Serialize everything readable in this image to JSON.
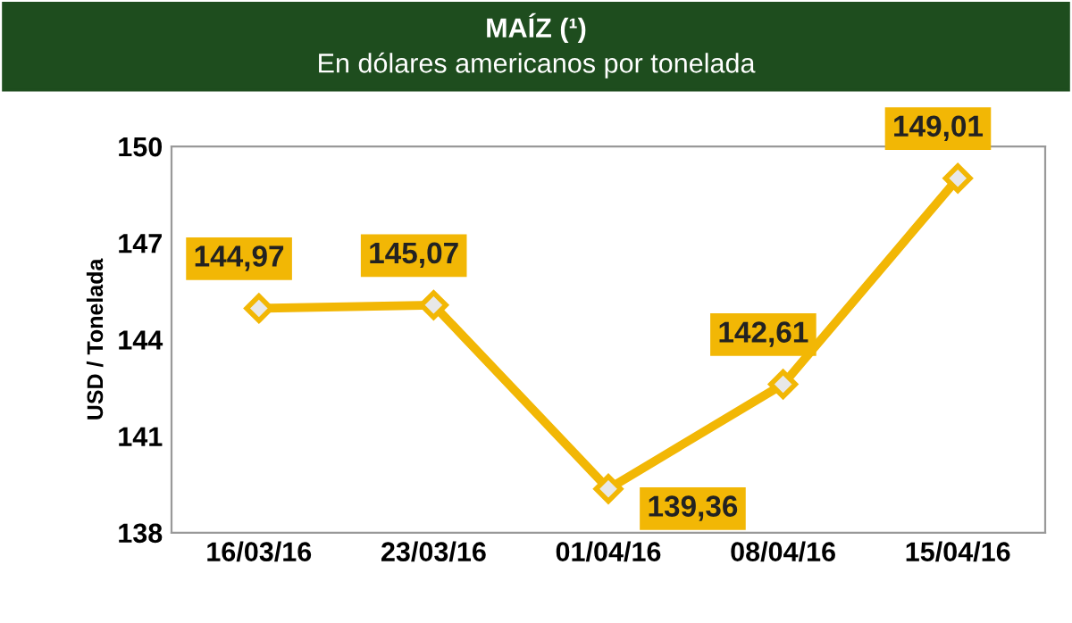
{
  "chart_data": {
    "type": "line",
    "title": "MAÍZ (¹)",
    "subtitle": "En dólares americanos por tonelada",
    "ylabel": "USD / Tonelada",
    "categories": [
      "16/03/16",
      "23/03/16",
      "01/04/16",
      "08/04/16",
      "15/04/16"
    ],
    "series": [
      {
        "color": "#f2b705",
        "values": [
          144.97,
          145.07,
          139.36,
          142.61,
          149.01
        ],
        "value_labels": [
          "144,97",
          "145,07",
          "139,36",
          "142,61",
          "149,01"
        ]
      }
    ],
    "ylim": [
      138,
      150
    ],
    "yticks": [
      138,
      141,
      144,
      147,
      150
    ],
    "marker": "diamond",
    "line_style": "solid",
    "grid": false,
    "legend": false
  }
}
